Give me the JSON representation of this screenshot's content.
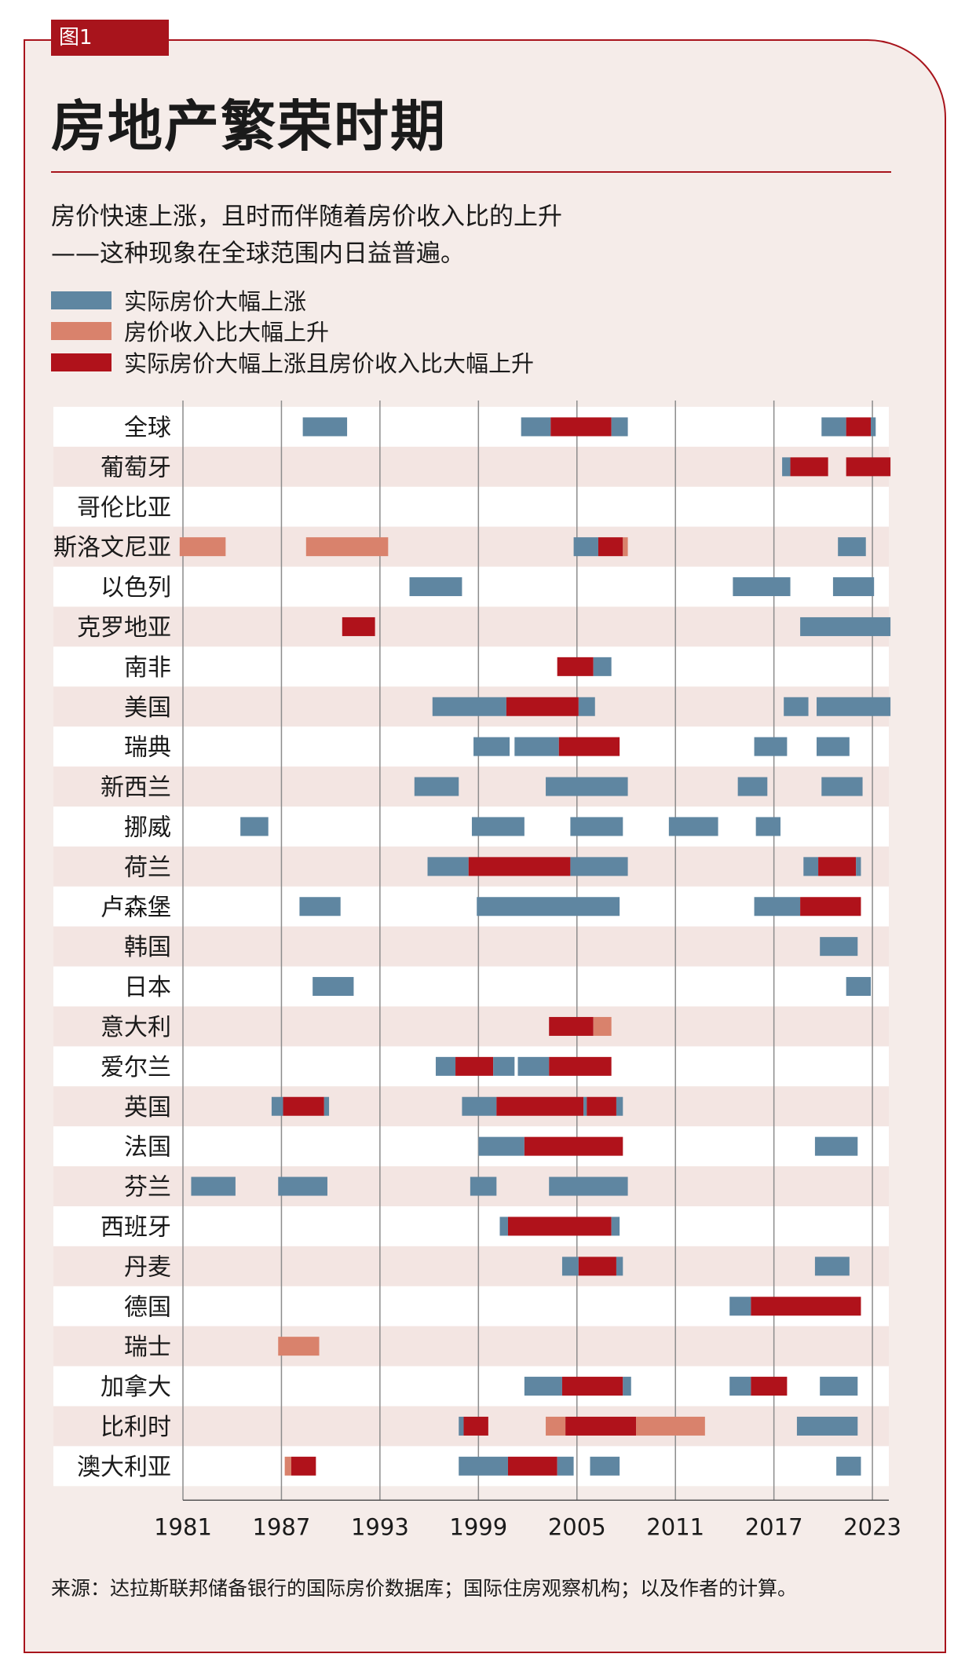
{
  "figure_tag": "图1",
  "title": "房地产繁荣时期",
  "subtitle_line1": "房价快速上涨，且时而伴随着房价收入比的上升",
  "subtitle_line2": "——这种现象在全球范围内日益普遍。",
  "source": "来源：达拉斯联邦储备银行的国际房价数据库；国际住房观察机构；以及作者的计算。",
  "colors": {
    "blue": "#5f86a1",
    "salmon": "#d9826c",
    "red": "#b0121b",
    "accent": "#a8141c",
    "panel": "#f5ece9",
    "stripe": "#f3e5e2"
  },
  "chart_data": {
    "type": "gantt",
    "xlim": [
      1981,
      2024
    ],
    "x_ticks": [
      "1981",
      "1987",
      "1993",
      "1999",
      "2005",
      "2011",
      "2017",
      "2023"
    ],
    "legend": [
      {
        "key": "blue",
        "label": "实际房价大幅上涨"
      },
      {
        "key": "salmon",
        "label": "房价收入比大幅上升"
      },
      {
        "key": "red",
        "label": "实际房价大幅上涨且房价收入比大幅上升"
      }
    ],
    "rows": [
      {
        "label": "全球",
        "spans": [
          [
            "blue",
            1988.3,
            1991
          ],
          [
            "blue",
            2001.6,
            2003.4
          ],
          [
            "red",
            2003.4,
            2007.1
          ],
          [
            "blue",
            2007.1,
            2008.1
          ],
          [
            "blue",
            2019.9,
            2021.4
          ],
          [
            "red",
            2021.4,
            2022.9
          ],
          [
            "blue",
            2022.9,
            2023.2
          ]
        ]
      },
      {
        "label": "葡萄牙",
        "spans": [
          [
            "blue",
            2017.5,
            2018
          ],
          [
            "red",
            2018,
            2020.3
          ],
          [
            "red",
            2021.4,
            2024.1
          ]
        ]
      },
      {
        "label": "哥伦比亚",
        "spans": []
      },
      {
        "label": "斯洛文尼亚",
        "spans": [
          [
            "salmon",
            1980.8,
            1983.6
          ],
          [
            "salmon",
            1988.5,
            1993.5
          ],
          [
            "blue",
            2004.8,
            2006.3
          ],
          [
            "red",
            2006.3,
            2007.8
          ],
          [
            "salmon",
            2007.8,
            2008.1
          ],
          [
            "blue",
            2020.9,
            2022.6
          ]
        ]
      },
      {
        "label": "以色列",
        "spans": [
          [
            "blue",
            1994.8,
            1998
          ],
          [
            "blue",
            2014.5,
            2018
          ],
          [
            "blue",
            2020.6,
            2023.1
          ]
        ]
      },
      {
        "label": "克罗地亚",
        "spans": [
          [
            "red",
            1990.7,
            1992.7
          ],
          [
            "blue",
            2018.6,
            2024.1
          ]
        ]
      },
      {
        "label": "南非",
        "spans": [
          [
            "red",
            2003.8,
            2006
          ],
          [
            "blue",
            2006,
            2007.1
          ]
        ]
      },
      {
        "label": "美国",
        "spans": [
          [
            "blue",
            1996.2,
            2000.7
          ],
          [
            "red",
            2000.7,
            2005.1
          ],
          [
            "blue",
            2005.1,
            2006.1
          ],
          [
            "blue",
            2017.6,
            2019.1
          ],
          [
            "blue",
            2019.6,
            2024.1
          ]
        ]
      },
      {
        "label": "瑞典",
        "spans": [
          [
            "blue",
            1998.7,
            2000.9
          ],
          [
            "blue",
            2001.2,
            2003.9
          ],
          [
            "red",
            2003.9,
            2007.6
          ],
          [
            "blue",
            2015.8,
            2017.8
          ],
          [
            "blue",
            2019.6,
            2021.6
          ]
        ]
      },
      {
        "label": "新西兰",
        "spans": [
          [
            "blue",
            1995.1,
            1997.8
          ],
          [
            "blue",
            2003.1,
            2008.1
          ],
          [
            "blue",
            2014.8,
            2016.6
          ],
          [
            "blue",
            2019.9,
            2022.4
          ]
        ]
      },
      {
        "label": "挪威",
        "spans": [
          [
            "blue",
            1984.5,
            1986.2
          ],
          [
            "blue",
            1998.6,
            2001.8
          ],
          [
            "blue",
            2004.6,
            2007.8
          ],
          [
            "blue",
            2010.6,
            2013.6
          ],
          [
            "blue",
            2015.9,
            2017.4
          ]
        ]
      },
      {
        "label": "荷兰",
        "spans": [
          [
            "blue",
            1995.9,
            1998.4
          ],
          [
            "red",
            1998.4,
            2004.6
          ],
          [
            "blue",
            2004.6,
            2008.1
          ],
          [
            "blue",
            2018.8,
            2019.7
          ],
          [
            "red",
            2019.7,
            2022
          ],
          [
            "blue",
            2022,
            2022.3
          ]
        ]
      },
      {
        "label": "卢森堡",
        "spans": [
          [
            "blue",
            1988.1,
            1990.6
          ],
          [
            "blue",
            1998.9,
            2007.6
          ],
          [
            "blue",
            2015.8,
            2018.6
          ],
          [
            "red",
            2018.6,
            2022.3
          ]
        ]
      },
      {
        "label": "韩国",
        "spans": [
          [
            "blue",
            2019.8,
            2022.1
          ]
        ]
      },
      {
        "label": "日本",
        "spans": [
          [
            "blue",
            1988.9,
            1991.4
          ],
          [
            "blue",
            2021.4,
            2022.9
          ]
        ]
      },
      {
        "label": "意大利",
        "spans": [
          [
            "red",
            2003.3,
            2006
          ],
          [
            "salmon",
            2006,
            2007.1
          ]
        ]
      },
      {
        "label": "爱尔兰",
        "spans": [
          [
            "blue",
            1996.4,
            1997.6
          ],
          [
            "red",
            1997.6,
            1999.9
          ],
          [
            "blue",
            1999.9,
            2001.2
          ],
          [
            "blue",
            2001.4,
            2003.3
          ],
          [
            "red",
            2003.3,
            2007.1
          ]
        ]
      },
      {
        "label": "英国",
        "spans": [
          [
            "blue",
            1986.4,
            1987.1
          ],
          [
            "red",
            1987.1,
            1989.6
          ],
          [
            "blue",
            1989.6,
            1989.9
          ],
          [
            "blue",
            1998,
            2000.1
          ],
          [
            "red",
            2000.1,
            2005.4
          ],
          [
            "blue",
            2005.4,
            2005.6
          ],
          [
            "red",
            2005.6,
            2007.4
          ],
          [
            "blue",
            2007.4,
            2007.8
          ]
        ]
      },
      {
        "label": "法国",
        "spans": [
          [
            "blue",
            1999,
            2001.8
          ],
          [
            "red",
            2001.8,
            2007.8
          ],
          [
            "blue",
            2019.5,
            2022.1
          ]
        ]
      },
      {
        "label": "芬兰",
        "spans": [
          [
            "blue",
            1981.5,
            1984.2
          ],
          [
            "blue",
            1986.8,
            1989.8
          ],
          [
            "blue",
            1998.5,
            2000.1
          ],
          [
            "blue",
            2003.3,
            2008.1
          ]
        ]
      },
      {
        "label": "西班牙",
        "spans": [
          [
            "blue",
            2000.3,
            2000.8
          ],
          [
            "red",
            2000.8,
            2007.1
          ],
          [
            "blue",
            2007.1,
            2007.6
          ]
        ]
      },
      {
        "label": "丹麦",
        "spans": [
          [
            "blue",
            2004.1,
            2005.1
          ],
          [
            "red",
            2005.1,
            2007.4
          ],
          [
            "blue",
            2007.4,
            2007.8
          ],
          [
            "blue",
            2019.5,
            2021.6
          ]
        ]
      },
      {
        "label": "德国",
        "spans": [
          [
            "blue",
            2014.3,
            2015.6
          ],
          [
            "red",
            2015.6,
            2022.3
          ]
        ]
      },
      {
        "label": "瑞士",
        "spans": [
          [
            "salmon",
            1986.8,
            1989.3
          ]
        ]
      },
      {
        "label": "加拿大",
        "spans": [
          [
            "blue",
            2001.8,
            2004.1
          ],
          [
            "red",
            2004.1,
            2007.8
          ],
          [
            "blue",
            2007.8,
            2008.3
          ],
          [
            "blue",
            2014.3,
            2015.6
          ],
          [
            "red",
            2015.6,
            2017.8
          ],
          [
            "blue",
            2019.8,
            2022.1
          ]
        ]
      },
      {
        "label": "比利时",
        "spans": [
          [
            "blue",
            1997.8,
            1998.1
          ],
          [
            "red",
            1998.1,
            1999.6
          ],
          [
            "salmon",
            2003.1,
            2004.3
          ],
          [
            "red",
            2004.3,
            2008.6
          ],
          [
            "salmon",
            2008.6,
            2012.8
          ],
          [
            "blue",
            2018.4,
            2022.1
          ]
        ]
      },
      {
        "label": "澳大利亚",
        "spans": [
          [
            "blue",
            1997.8,
            2000.8
          ],
          [
            "red",
            2000.8,
            2003.8
          ],
          [
            "blue",
            2003.8,
            2004.8
          ],
          [
            "blue",
            2005.8,
            2007.6
          ],
          [
            "salmon",
            1987.2,
            1987.6
          ],
          [
            "red",
            1987.6,
            1989.1
          ],
          [
            "blue",
            2020.8,
            2022.3
          ]
        ]
      }
    ]
  }
}
